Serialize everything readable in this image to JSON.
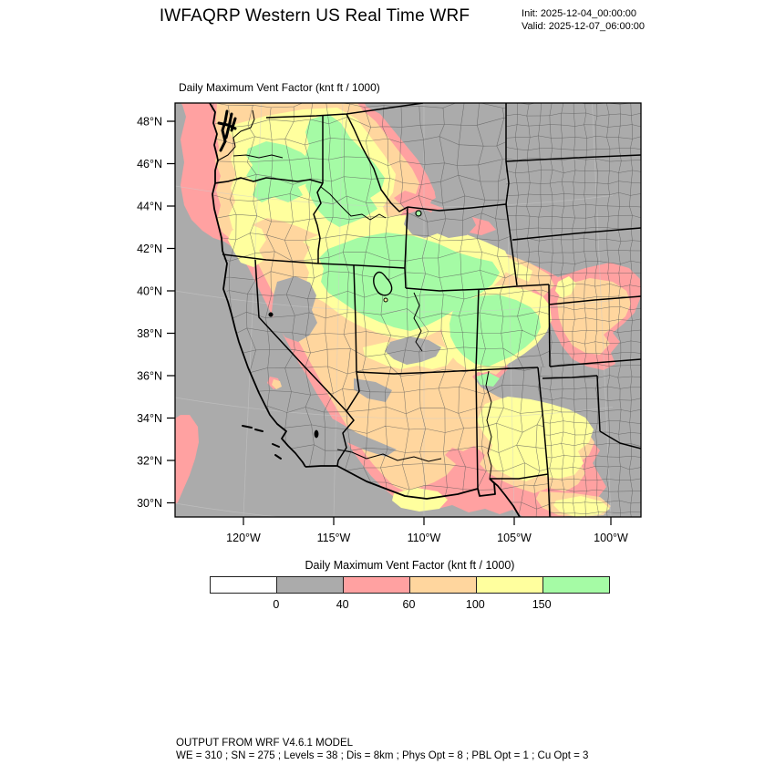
{
  "header": {
    "title": "IWFAQRP Western US Real Time WRF",
    "init": "Init: 2025-12-04_00:00:00",
    "valid": "Valid: 2025-12-07_06:00:00"
  },
  "map": {
    "subtitle": "Daily Maximum Vent Factor   (knt ft / 1000)"
  },
  "axes": {
    "lat": [
      "48°N",
      "46°N",
      "44°N",
      "42°N",
      "40°N",
      "38°N",
      "36°N",
      "34°N",
      "32°N",
      "30°N"
    ],
    "lon": [
      "120°W",
      "115°W",
      "110°W",
      "105°W",
      "100°W"
    ]
  },
  "legend": {
    "title": "Daily Maximum Vent Factor  (knt ft / 1000)",
    "labels": [
      "0",
      "40",
      "60",
      "100",
      "150"
    ],
    "colors": [
      "#FFFFFF",
      "#ABABAB",
      "#FFA1A1",
      "#FFD69E",
      "#FFFF9E",
      "#A5FBA5"
    ]
  },
  "footer": {
    "line1": "OUTPUT FROM WRF V4.6.1 MODEL",
    "line2": "WE = 310 ; SN = 275 ; Levels = 38 ; Dis = 8km ; Phys Opt = 8 ; PBL Opt = 1 ; Cu Opt = 3"
  },
  "map_colors": {
    "background": "#ABABAB",
    "state_lines": "#000000",
    "county_lines": "#5A5A5A",
    "graticule": "#CCCCCC"
  }
}
